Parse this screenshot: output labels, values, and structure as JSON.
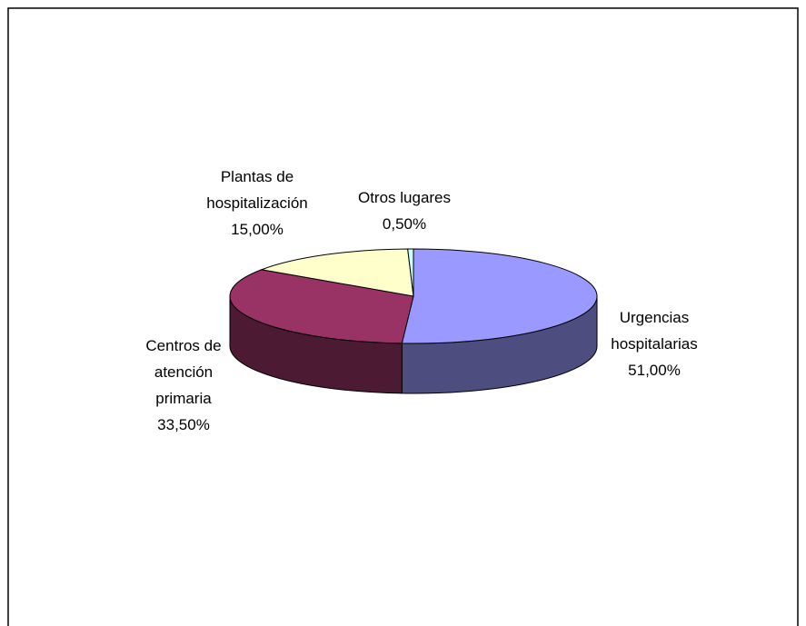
{
  "chart_data": {
    "type": "pie",
    "categories": [
      "Urgencias hospitalarias",
      "Centros de atención primaria",
      "Plantas de hospitalización",
      "Otros lugares"
    ],
    "values": [
      51,
      33.5,
      15,
      0.5
    ],
    "value_labels": [
      "51,00%",
      "33,50%",
      "15,00%",
      "0,50%"
    ],
    "colors": [
      "#9999ff",
      "#993366",
      "#ffffcc",
      "#ccffff"
    ]
  }
}
